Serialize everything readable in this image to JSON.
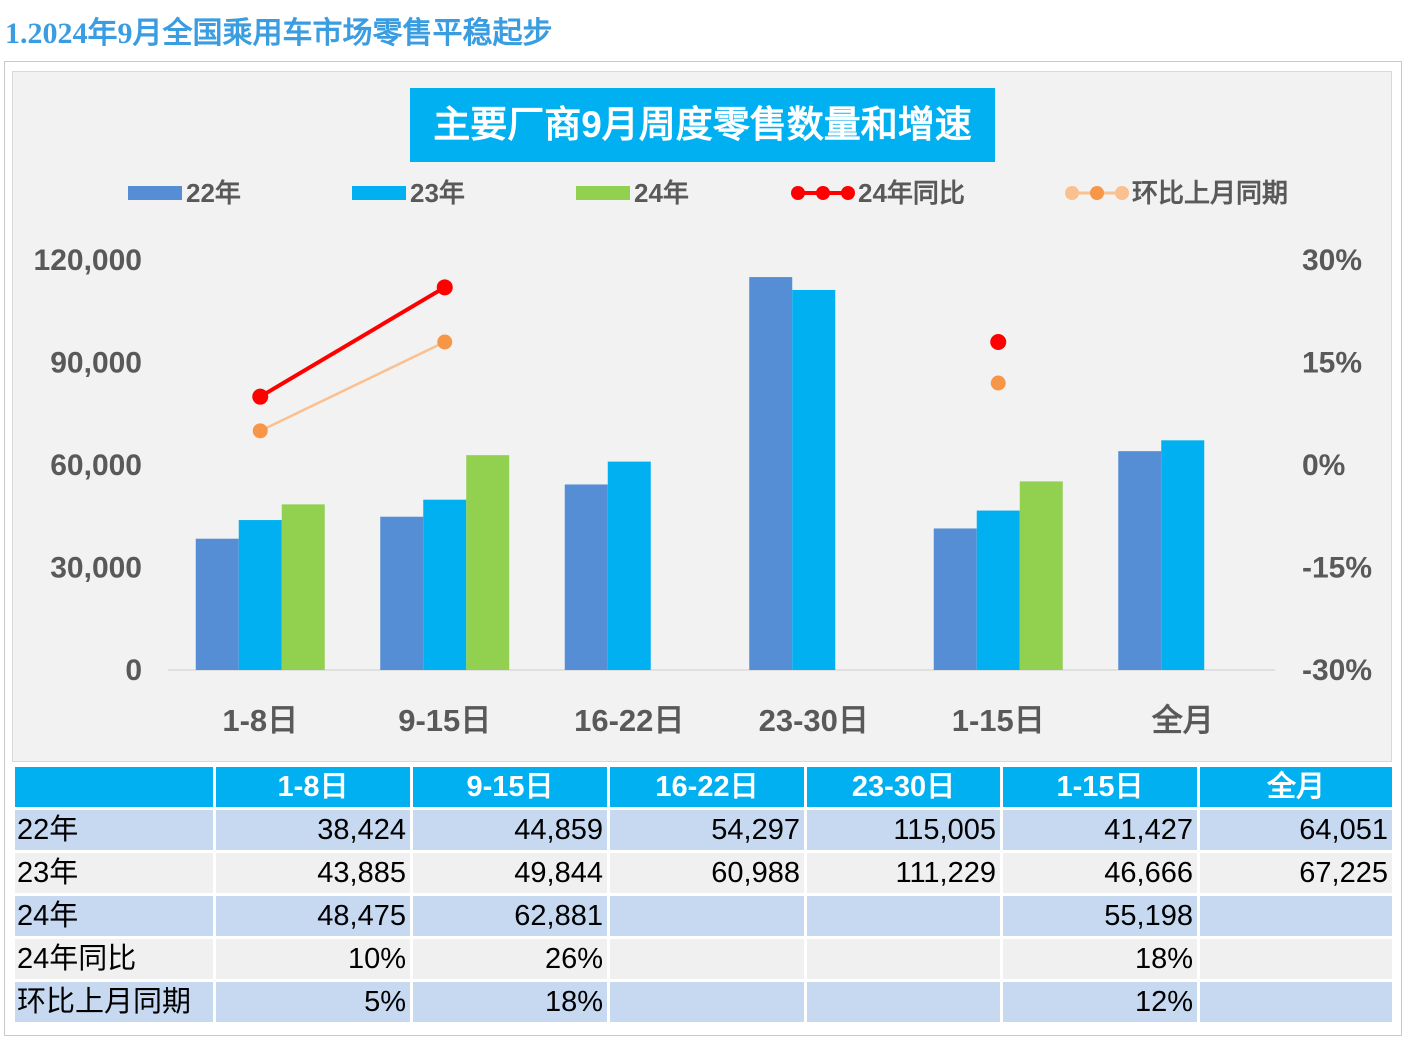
{
  "page_heading": "1.2024年9月全国乘用车市场零售平稳起步",
  "chart_data": {
    "type": "bar",
    "title": "主要厂商9月周度零售数量和增速",
    "categories": [
      "1-8日",
      "9-15日",
      "16-22日",
      "23-30日",
      "1-15日",
      "全月"
    ],
    "series": [
      {
        "name": "22年",
        "type": "bar",
        "axis": "left",
        "color": "#558ed5",
        "values": [
          38424,
          44859,
          54297,
          115005,
          41427,
          64051
        ]
      },
      {
        "name": "23年",
        "type": "bar",
        "axis": "left",
        "color": "#00b0f0",
        "values": [
          43885,
          49844,
          60988,
          111229,
          46666,
          67225
        ]
      },
      {
        "name": "24年",
        "type": "bar",
        "axis": "left",
        "color": "#92d050",
        "values": [
          48475,
          62881,
          null,
          null,
          55198,
          null
        ]
      },
      {
        "name": "24年同比",
        "type": "line",
        "axis": "right",
        "color": "#ff0000",
        "values": [
          10,
          26,
          null,
          null,
          18,
          null
        ]
      },
      {
        "name": "环比上月同期",
        "type": "line",
        "axis": "right",
        "color": "#f79646",
        "line_color": "#fac090",
        "values": [
          5,
          18,
          null,
          null,
          12,
          null
        ]
      }
    ],
    "left_axis": {
      "ylim": [
        0,
        120000
      ],
      "ticks": [
        0,
        30000,
        60000,
        90000,
        120000
      ],
      "tick_labels": [
        "0",
        "30,000",
        "60,000",
        "90,000",
        "120,000"
      ]
    },
    "right_axis": {
      "ylim": [
        -30,
        30
      ],
      "ticks": [
        -30,
        -15,
        0,
        15,
        30
      ],
      "tick_labels": [
        "-30%",
        "-15%",
        "0%",
        "15%",
        "30%"
      ]
    },
    "legend_position": "top",
    "grid": false
  },
  "table": {
    "columns": [
      "1-8日",
      "9-15日",
      "16-22日",
      "23-30日",
      "1-15日",
      "全月"
    ],
    "rows": [
      {
        "label": "22年",
        "cells": [
          "38,424",
          "44,859",
          "54,297",
          "115,005",
          "41,427",
          "64,051"
        ]
      },
      {
        "label": "23年",
        "cells": [
          "43,885",
          "49,844",
          "60,988",
          "111,229",
          "46,666",
          "67,225"
        ]
      },
      {
        "label": "24年",
        "cells": [
          "48,475",
          "62,881",
          "",
          "",
          "55,198",
          ""
        ]
      },
      {
        "label": "24年同比",
        "cells": [
          "10%",
          "26%",
          "",
          "",
          "18%",
          ""
        ]
      },
      {
        "label": "环比上月同期",
        "cells": [
          "5%",
          "18%",
          "",
          "",
          "12%",
          ""
        ]
      }
    ]
  }
}
